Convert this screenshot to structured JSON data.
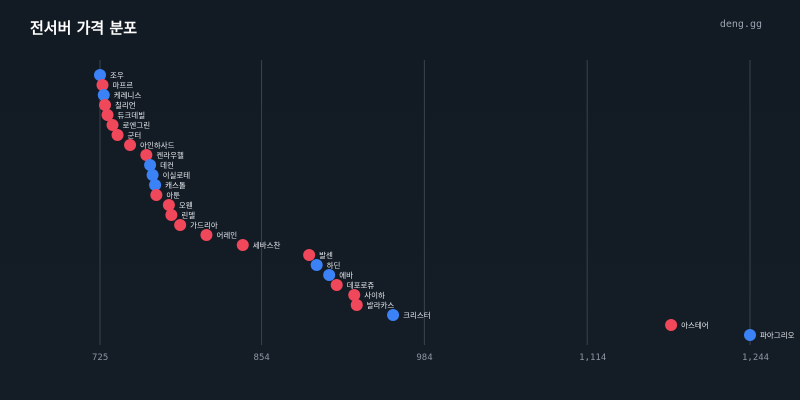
{
  "page": {
    "title": "전서버 가격 분포",
    "brand": "deng.gg"
  },
  "colors": {
    "background": "#121a23",
    "gridline": "#3a434d",
    "red": "#f0485a",
    "blue": "#3b82f6",
    "text": "#e6e9ee",
    "tick": "#8d97a3"
  },
  "chart_data": {
    "type": "scatter",
    "title": "전서버 가격 분포",
    "xlabel": "",
    "ylabel": "",
    "xlim": [
      725,
      1244
    ],
    "x_ticks": [
      725,
      854,
      984,
      1114,
      1244
    ],
    "x_tick_labels": [
      "725",
      "854",
      "984",
      "1,114",
      "1,244"
    ],
    "grid": "vertical",
    "points": [
      {
        "label": "조우",
        "x": 725,
        "color": "blue"
      },
      {
        "label": "마프르",
        "x": 727,
        "color": "red"
      },
      {
        "label": "케레니스",
        "x": 728,
        "color": "blue"
      },
      {
        "label": "칠리언",
        "x": 729,
        "color": "red"
      },
      {
        "label": "듀크데빌",
        "x": 731,
        "color": "red"
      },
      {
        "label": "로엔그린",
        "x": 735,
        "color": "red"
      },
      {
        "label": "군터",
        "x": 739,
        "color": "red"
      },
      {
        "label": "아인하사드",
        "x": 749,
        "color": "red"
      },
      {
        "label": "켄라우헬",
        "x": 762,
        "color": "red"
      },
      {
        "label": "데컨",
        "x": 765,
        "color": "blue"
      },
      {
        "label": "이실로테",
        "x": 767,
        "color": "blue"
      },
      {
        "label": "캐스톨",
        "x": 769,
        "color": "blue"
      },
      {
        "label": "아툰",
        "x": 770,
        "color": "red"
      },
      {
        "label": "오웬",
        "x": 780,
        "color": "red"
      },
      {
        "label": "린델",
        "x": 782,
        "color": "red"
      },
      {
        "label": "가드리아",
        "x": 789,
        "color": "red"
      },
      {
        "label": "어레인",
        "x": 810,
        "color": "red"
      },
      {
        "label": "세바스찬",
        "x": 839,
        "color": "red"
      },
      {
        "label": "발센",
        "x": 892,
        "color": "red"
      },
      {
        "label": "하딘",
        "x": 898,
        "color": "blue"
      },
      {
        "label": "에바",
        "x": 908,
        "color": "blue"
      },
      {
        "label": "데포로쥬",
        "x": 914,
        "color": "red"
      },
      {
        "label": "사이하",
        "x": 928,
        "color": "red"
      },
      {
        "label": "발라카스",
        "x": 930,
        "color": "red"
      },
      {
        "label": "크리스터",
        "x": 959,
        "color": "blue"
      },
      {
        "label": "아스테어",
        "x": 1181,
        "color": "red"
      },
      {
        "label": "파아그리오",
        "x": 1244,
        "color": "blue"
      }
    ]
  }
}
